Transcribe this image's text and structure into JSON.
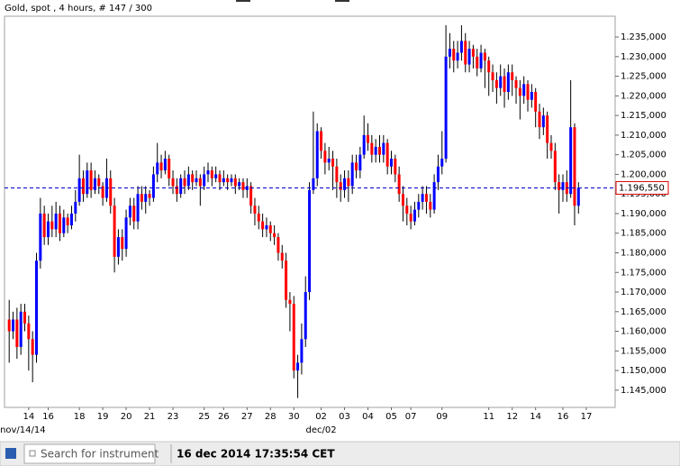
{
  "chart_data": {
    "type": "candlestick",
    "title": "Gold, spot , 4 hours, # 147 / 300",
    "up_color": "#0000ff",
    "down_color": "#ff0000",
    "open": [
      1.163,
      1.16,
      1.163,
      1.156,
      1.165,
      1.162,
      1.158,
      1.154,
      1.178,
      1.19,
      1.184,
      1.188,
      1.186,
      1.19,
      1.185,
      1.189,
      1.187,
      1.19,
      1.193,
      1.199,
      1.195,
      1.201,
      1.196,
      1.199,
      1.197,
      1.194,
      1.199,
      1.192,
      1.179,
      1.184,
      1.181,
      1.189,
      1.192,
      1.188,
      1.195,
      1.193,
      1.195,
      1.194,
      1.2,
      1.203,
      1.201,
      1.204,
      1.199,
      1.197,
      1.195,
      1.199,
      1.197,
      1.2,
      1.198,
      1.199,
      1.197,
      1.2,
      1.201,
      1.199,
      1.2,
      1.198,
      1.199,
      1.198,
      1.199,
      1.197,
      1.198,
      1.196,
      1.197,
      1.192,
      1.19,
      1.188,
      1.186,
      1.187,
      1.185,
      1.184,
      1.18,
      1.178,
      1.168,
      1.167,
      1.15,
      1.152,
      1.158,
      1.17,
      1.196,
      1.199,
      1.211,
      1.206,
      1.203,
      1.204,
      1.202,
      1.198,
      1.196,
      1.199,
      1.197,
      1.203,
      1.201,
      1.205,
      1.21,
      1.208,
      1.205,
      1.207,
      1.205,
      1.208,
      1.202,
      1.204,
      1.2,
      1.195,
      1.192,
      1.19,
      1.188,
      1.191,
      1.193,
      1.195,
      1.193,
      1.191,
      1.198,
      1.202,
      1.204,
      1.23,
      1.232,
      1.229,
      1.231,
      1.234,
      1.228,
      1.232,
      1.23,
      1.227,
      1.231,
      1.229,
      1.226,
      1.224,
      1.222,
      1.225,
      1.221,
      1.226,
      1.224,
      1.222,
      1.22,
      1.223,
      1.219,
      1.221,
      1.216,
      1.212,
      1.215,
      1.208,
      1.206,
      1.198,
      1.196,
      1.198,
      1.195,
      1.212,
      1.192
    ],
    "high": [
      1.168,
      1.165,
      1.166,
      1.167,
      1.167,
      1.164,
      1.16,
      1.18,
      1.194,
      1.192,
      1.19,
      1.192,
      1.193,
      1.192,
      1.191,
      1.19,
      1.192,
      1.196,
      1.205,
      1.201,
      1.203,
      1.203,
      1.201,
      1.2,
      1.198,
      1.204,
      1.201,
      1.194,
      1.186,
      1.186,
      1.191,
      1.194,
      1.194,
      1.197,
      1.197,
      1.197,
      1.196,
      1.202,
      1.208,
      1.205,
      1.206,
      1.205,
      1.201,
      1.199,
      1.2,
      1.201,
      1.202,
      1.201,
      1.201,
      1.2,
      1.202,
      1.203,
      1.202,
      1.202,
      1.201,
      1.201,
      1.2,
      1.2,
      1.2,
      1.199,
      1.199,
      1.199,
      1.198,
      1.194,
      1.192,
      1.19,
      1.189,
      1.188,
      1.187,
      1.185,
      1.182,
      1.18,
      1.17,
      1.169,
      1.154,
      1.162,
      1.174,
      1.198,
      1.216,
      1.213,
      1.212,
      1.208,
      1.207,
      1.206,
      1.204,
      1.2,
      1.201,
      1.201,
      1.205,
      1.205,
      1.207,
      1.215,
      1.213,
      1.21,
      1.209,
      1.21,
      1.21,
      1.209,
      1.206,
      1.205,
      1.202,
      1.197,
      1.194,
      1.192,
      1.193,
      1.195,
      1.197,
      1.197,
      1.195,
      1.2,
      1.205,
      1.211,
      1.238,
      1.236,
      1.234,
      1.234,
      1.238,
      1.236,
      1.234,
      1.233,
      1.232,
      1.233,
      1.232,
      1.23,
      1.228,
      1.226,
      1.228,
      1.227,
      1.228,
      1.228,
      1.225,
      1.224,
      1.225,
      1.224,
      1.223,
      1.222,
      1.218,
      1.217,
      1.216,
      1.21,
      1.208,
      1.2,
      1.2,
      1.201,
      1.224,
      1.213,
      1.198
    ],
    "low": [
      1.152,
      1.158,
      1.153,
      1.154,
      1.16,
      1.15,
      1.147,
      1.152,
      1.176,
      1.182,
      1.182,
      1.184,
      1.184,
      1.183,
      1.184,
      1.185,
      1.186,
      1.188,
      1.192,
      1.193,
      1.194,
      1.194,
      1.195,
      1.195,
      1.192,
      1.193,
      1.19,
      1.175,
      1.177,
      1.178,
      1.179,
      1.187,
      1.186,
      1.186,
      1.191,
      1.19,
      1.192,
      1.193,
      1.198,
      1.199,
      1.2,
      1.197,
      1.195,
      1.193,
      1.194,
      1.195,
      1.196,
      1.196,
      1.197,
      1.192,
      1.196,
      1.198,
      1.197,
      1.198,
      1.196,
      1.197,
      1.196,
      1.197,
      1.195,
      1.196,
      1.194,
      1.194,
      1.19,
      1.187,
      1.186,
      1.184,
      1.184,
      1.183,
      1.182,
      1.178,
      1.176,
      1.166,
      1.16,
      1.148,
      1.143,
      1.149,
      1.156,
      1.168,
      1.195,
      1.197,
      1.204,
      1.2,
      1.201,
      1.196,
      1.194,
      1.193,
      1.194,
      1.193,
      1.195,
      1.199,
      1.199,
      1.204,
      1.206,
      1.203,
      1.203,
      1.203,
      1.203,
      1.2,
      1.2,
      1.198,
      1.193,
      1.188,
      1.187,
      1.186,
      1.187,
      1.189,
      1.191,
      1.19,
      1.189,
      1.19,
      1.196,
      1.2,
      1.203,
      1.227,
      1.226,
      1.227,
      1.229,
      1.226,
      1.226,
      1.227,
      1.225,
      1.226,
      1.222,
      1.22,
      1.221,
      1.218,
      1.22,
      1.217,
      1.219,
      1.22,
      1.218,
      1.214,
      1.218,
      1.216,
      1.217,
      1.212,
      1.209,
      1.21,
      1.204,
      1.204,
      1.196,
      1.19,
      1.193,
      1.193,
      1.194,
      1.187,
      1.19
    ],
    "close": [
      1.16,
      1.163,
      1.156,
      1.165,
      1.162,
      1.158,
      1.154,
      1.178,
      1.19,
      1.184,
      1.188,
      1.186,
      1.19,
      1.185,
      1.189,
      1.187,
      1.19,
      1.193,
      1.199,
      1.195,
      1.201,
      1.196,
      1.199,
      1.197,
      1.194,
      1.199,
      1.192,
      1.179,
      1.184,
      1.181,
      1.189,
      1.192,
      1.188,
      1.195,
      1.193,
      1.195,
      1.194,
      1.2,
      1.203,
      1.201,
      1.204,
      1.199,
      1.197,
      1.195,
      1.199,
      1.197,
      1.2,
      1.198,
      1.199,
      1.197,
      1.2,
      1.201,
      1.199,
      1.2,
      1.198,
      1.199,
      1.198,
      1.199,
      1.197,
      1.198,
      1.196,
      1.197,
      1.192,
      1.19,
      1.188,
      1.186,
      1.187,
      1.185,
      1.184,
      1.18,
      1.178,
      1.168,
      1.167,
      1.15,
      1.152,
      1.158,
      1.17,
      1.196,
      1.199,
      1.211,
      1.206,
      1.203,
      1.204,
      1.202,
      1.198,
      1.196,
      1.199,
      1.197,
      1.203,
      1.201,
      1.205,
      1.21,
      1.208,
      1.205,
      1.207,
      1.205,
      1.208,
      1.202,
      1.204,
      1.2,
      1.195,
      1.192,
      1.19,
      1.188,
      1.191,
      1.193,
      1.195,
      1.193,
      1.191,
      1.198,
      1.202,
      1.204,
      1.23,
      1.232,
      1.229,
      1.231,
      1.234,
      1.228,
      1.232,
      1.23,
      1.227,
      1.231,
      1.229,
      1.226,
      1.224,
      1.222,
      1.225,
      1.221,
      1.226,
      1.224,
      1.222,
      1.22,
      1.223,
      1.219,
      1.221,
      1.216,
      1.212,
      1.215,
      1.208,
      1.206,
      1.198,
      1.196,
      1.198,
      1.195,
      1.212,
      1.192,
      1.1966
    ],
    "xlim": [
      -1.2,
      155.4
    ],
    "xticks": [
      {
        "value": 5,
        "label": "14"
      },
      {
        "value": 10,
        "label": "16"
      },
      {
        "value": 18,
        "label": "18"
      },
      {
        "value": 24,
        "label": "19"
      },
      {
        "value": 30,
        "label": "20"
      },
      {
        "value": 36,
        "label": "21"
      },
      {
        "value": 42,
        "label": "23"
      },
      {
        "value": 50,
        "label": "25"
      },
      {
        "value": 55,
        "label": "26"
      },
      {
        "value": 61,
        "label": "27"
      },
      {
        "value": 67,
        "label": "28"
      },
      {
        "value": 73,
        "label": "30"
      },
      {
        "value": 80,
        "label": "02"
      },
      {
        "value": 86,
        "label": "03"
      },
      {
        "value": 92,
        "label": "04"
      },
      {
        "value": 98,
        "label": "05"
      },
      {
        "value": 103,
        "label": "07"
      },
      {
        "value": 111,
        "label": "09"
      },
      {
        "value": 123,
        "label": "11"
      },
      {
        "value": 129,
        "label": "12"
      },
      {
        "value": 135,
        "label": "14"
      },
      {
        "value": 142,
        "label": "16"
      },
      {
        "value": 148,
        "label": "17"
      }
    ],
    "xticks_sub": [
      {
        "value": 3.5,
        "label": "nov/14/14"
      },
      {
        "value": 80,
        "label": "dec/02"
      }
    ],
    "ylim": [
      1.1406,
      1.2403
    ],
    "yticks": [
      {
        "value": 1.145,
        "label": "1.145,000"
      },
      {
        "value": 1.15,
        "label": "1.150,000"
      },
      {
        "value": 1.155,
        "label": "1.155,000"
      },
      {
        "value": 1.16,
        "label": "1.160,000"
      },
      {
        "value": 1.165,
        "label": "1.165,000"
      },
      {
        "value": 1.17,
        "label": "1.170,000"
      },
      {
        "value": 1.175,
        "label": "1.175,000"
      },
      {
        "value": 1.18,
        "label": "1.180,000"
      },
      {
        "value": 1.185,
        "label": "1.185,000"
      },
      {
        "value": 1.19,
        "label": "1.190,000"
      },
      {
        "value": 1.195,
        "label": "1.195,000"
      },
      {
        "value": 1.2,
        "label": "1.200,000"
      },
      {
        "value": 1.205,
        "label": "1.205,000"
      },
      {
        "value": 1.21,
        "label": "1.210,000"
      },
      {
        "value": 1.215,
        "label": "1.215,000"
      },
      {
        "value": 1.22,
        "label": "1.220,000"
      },
      {
        "value": 1.225,
        "label": "1.225,000"
      },
      {
        "value": 1.23,
        "label": "1.230,000"
      },
      {
        "value": 1.235,
        "label": "1.235,000"
      }
    ],
    "last_price": {
      "value": 1.19655,
      "label": "1.196,550",
      "color": "#0000cc"
    }
  },
  "ui": {
    "search_placeholder": "Search for instrument",
    "timestamp": "16 dec 2014 17:35:54 CET"
  }
}
